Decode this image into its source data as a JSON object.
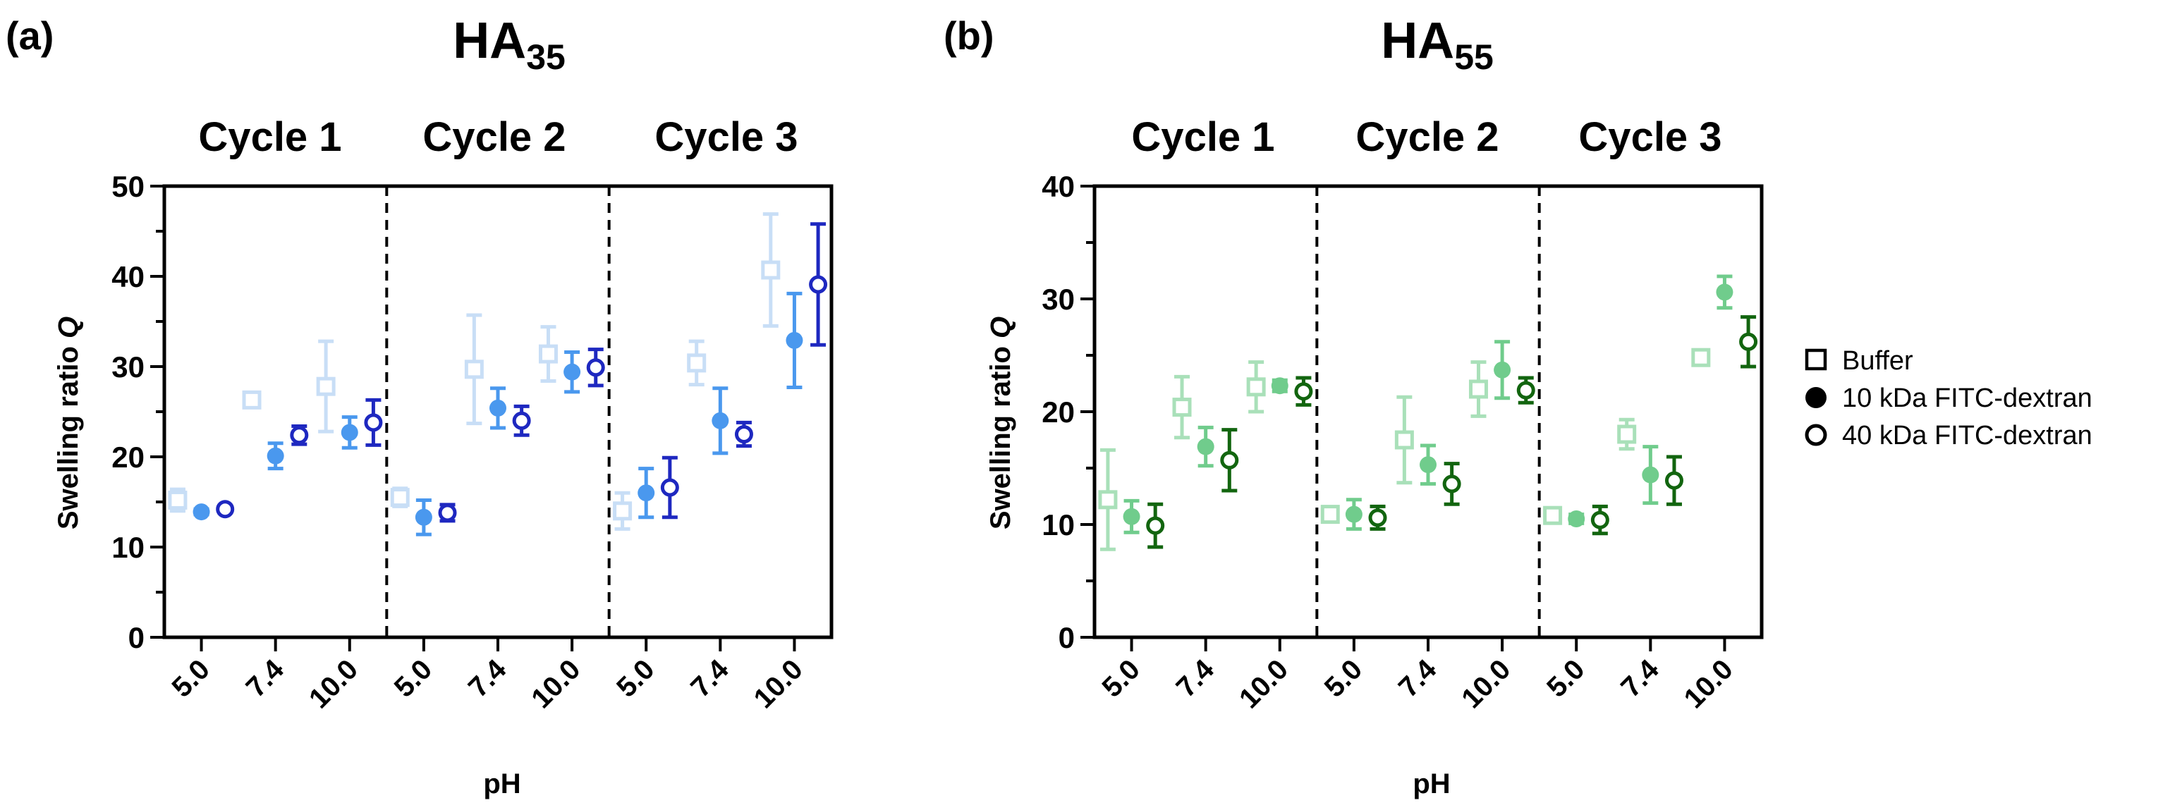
{
  "legend": {
    "items": [
      {
        "label": "Buffer",
        "marker": "open-square"
      },
      {
        "label": "10 kDa FITC-dextran",
        "marker": "filled-circle"
      },
      {
        "label": "40 kDa FITC-dextran",
        "marker": "open-circle"
      }
    ]
  },
  "chart_data": [
    {
      "type": "scatter",
      "panel_label": "(a)",
      "title_main": "HA",
      "title_sub": "35",
      "xlabel": "pH",
      "ylabel_main": "Swelling ratio ",
      "ylabel_italic": "Q",
      "ylim": [
        0,
        50
      ],
      "yticks": [
        0,
        10,
        20,
        30,
        40,
        50
      ],
      "ytick_labels": [
        "0",
        "10",
        "20",
        "30",
        "40",
        "50"
      ],
      "cycles": [
        "Cycle 1",
        "Cycle 2",
        "Cycle 3"
      ],
      "ph_labels": [
        "5.0",
        "7.4",
        "10.0"
      ],
      "colors": {
        "Buffer": "#c8def6",
        "10 kDa FITC-dextran": "#4a98ee",
        "40 kDa FITC-dextran": "#1e28c0"
      },
      "series": [
        {
          "name": "Buffer",
          "marker": "open-square",
          "mean": [
            15.2,
            26.3,
            27.8,
            15.5,
            29.7,
            31.4,
            14.0,
            30.4,
            40.7
          ],
          "err": [
            1.2,
            0.5,
            5.0,
            1.0,
            6.0,
            3.0,
            2.0,
            2.4,
            6.2
          ]
        },
        {
          "name": "10 kDa FITC-dextran",
          "marker": "filled-circle",
          "mean": [
            13.9,
            20.1,
            22.7,
            13.3,
            25.4,
            29.4,
            16.0,
            24.0,
            32.9
          ],
          "err": [
            0.3,
            1.4,
            1.7,
            1.9,
            2.2,
            2.2,
            2.7,
            3.6,
            5.2
          ]
        },
        {
          "name": "40 kDa FITC-dextran",
          "marker": "open-circle",
          "mean": [
            14.2,
            22.4,
            23.8,
            13.8,
            24.0,
            29.9,
            16.6,
            22.5,
            39.1
          ],
          "err": [
            0.3,
            1.0,
            2.5,
            0.9,
            1.6,
            2.0,
            3.3,
            1.3,
            6.7
          ]
        }
      ]
    },
    {
      "type": "scatter",
      "panel_label": "(b)",
      "title_main": "HA",
      "title_sub": "55",
      "xlabel": "pH",
      "ylabel_main": "Swelling ratio ",
      "ylabel_italic": "Q",
      "ylim": [
        0,
        40
      ],
      "yticks": [
        0,
        10,
        20,
        30,
        40
      ],
      "ytick_labels": [
        "0",
        "10",
        "20",
        "30",
        "40"
      ],
      "cycles": [
        "Cycle 1",
        "Cycle 2",
        "Cycle 3"
      ],
      "ph_labels": [
        "5.0",
        "7.4",
        "10.0"
      ],
      "colors": {
        "Buffer": "#a9e0b9",
        "10 kDa FITC-dextran": "#70cc8c",
        "40 kDa FITC-dextran": "#12650f"
      },
      "series": [
        {
          "name": "Buffer",
          "marker": "open-square",
          "mean": [
            12.2,
            20.4,
            22.2,
            10.9,
            17.5,
            22.0,
            10.8,
            18.0,
            24.8
          ],
          "err": [
            4.4,
            2.7,
            2.2,
            0.5,
            3.8,
            2.4,
            0.5,
            1.3,
            0.4
          ]
        },
        {
          "name": "10 kDa FITC-dextran",
          "marker": "filled-circle",
          "mean": [
            10.7,
            16.9,
            22.3,
            10.9,
            15.3,
            23.7,
            10.5,
            14.4,
            30.6
          ],
          "err": [
            1.4,
            1.7,
            0.5,
            1.3,
            1.7,
            2.5,
            0.4,
            2.5,
            1.4
          ]
        },
        {
          "name": "40 kDa FITC-dextran",
          "marker": "open-circle",
          "mean": [
            9.9,
            15.7,
            21.8,
            10.6,
            13.6,
            21.9,
            10.4,
            13.9,
            26.2
          ],
          "err": [
            1.9,
            2.7,
            1.2,
            1.0,
            1.8,
            1.1,
            1.2,
            2.1,
            2.2
          ]
        }
      ]
    }
  ]
}
